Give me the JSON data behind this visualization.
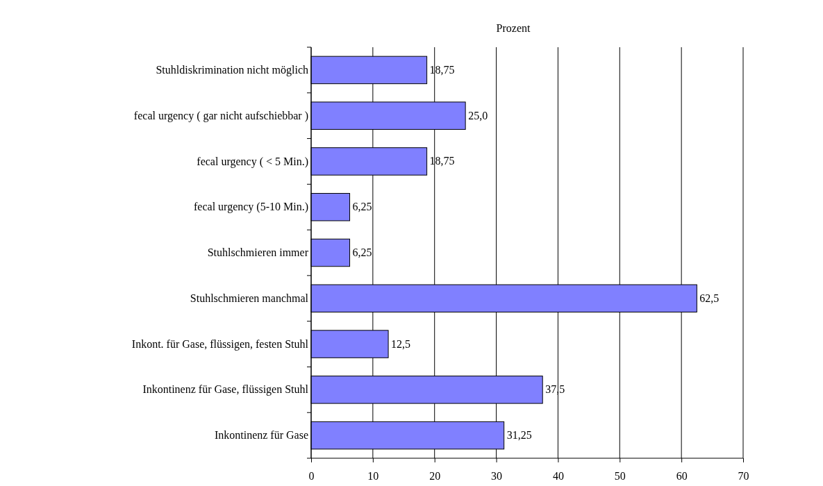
{
  "chart_data": {
    "type": "bar",
    "orientation": "horizontal",
    "title": "Prozent",
    "categories": [
      "Stuhldiskrimination nicht möglich",
      "fecal urgency   ( gar nicht aufschiebbar )",
      "fecal urgency   ( < 5  Min.)",
      "fecal urgency   (5-10 Min.)",
      "Stuhlschmieren  immer",
      "Stuhlschmieren  manchmal",
      "Inkont. für Gase, flüssigen, festen Stuhl",
      "Inkontinenz für Gase, flüssigen Stuhl",
      "Inkontinenz für Gase"
    ],
    "values": [
      18.75,
      25.0,
      18.75,
      6.25,
      6.25,
      62.5,
      12.5,
      37.5,
      31.25
    ],
    "value_labels": [
      "18,75",
      "25,0",
      "18,75",
      "6,25",
      "6,25",
      "62,5",
      "12,5",
      "37,5",
      "31,25"
    ],
    "color": "#8080ff",
    "xlim": [
      0,
      70
    ],
    "xticks": [
      0,
      10,
      20,
      30,
      40,
      50,
      60,
      70
    ],
    "grid": "x"
  }
}
